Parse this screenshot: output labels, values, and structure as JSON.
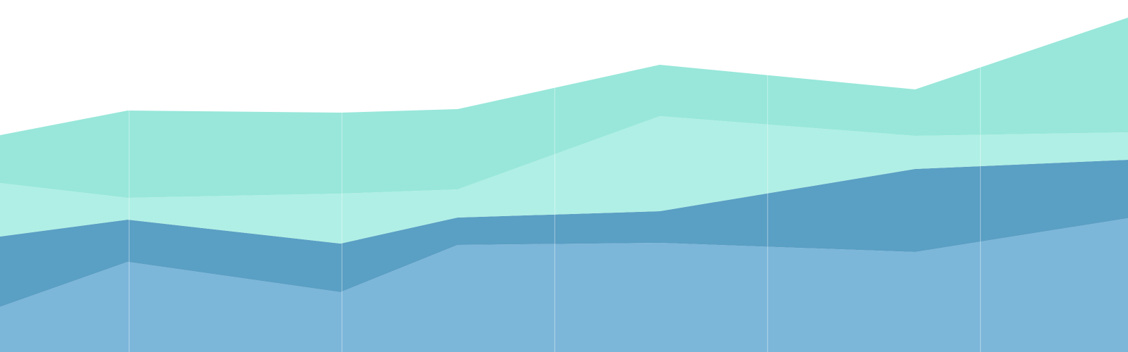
{
  "chart_data": {
    "type": "area",
    "stacked": true,
    "x": [
      -0.6,
      0,
      1,
      1.55,
      2.5,
      3.7,
      4.7
    ],
    "series": [
      {
        "values": [
          64,
          128,
          85,
          152,
          155,
          142,
          190
        ],
        "color": "#7cb6d9"
      },
      {
        "values": [
          100,
          60,
          69,
          39,
          45,
          118,
          83
        ],
        "color": "#5a9fc4"
      },
      {
        "values": [
          76,
          31,
          71,
          40,
          135,
          47,
          39
        ],
        "color": "#b0efe5"
      },
      {
        "values": [
          68,
          124,
          115,
          114,
          73,
          66,
          163
        ],
        "color": "#98e7da"
      }
    ],
    "xlim": [
      -0.6,
      4.7
    ],
    "ylim": [
      0,
      500
    ],
    "grid": {
      "x": true,
      "y": false,
      "x_ticks": [
        0,
        1,
        2,
        3,
        4
      ],
      "color": "#ffffff"
    },
    "legend": "none",
    "title": "",
    "xlabel": "",
    "ylabel": ""
  }
}
